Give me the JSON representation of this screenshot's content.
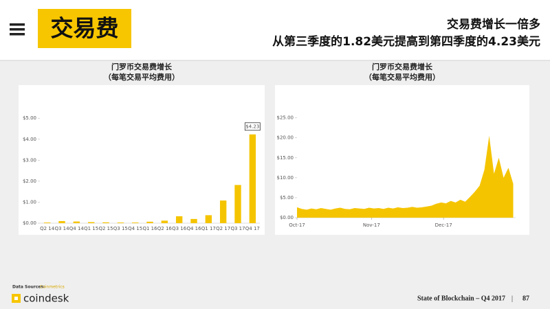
{
  "header": {
    "tag": "交易费",
    "headline": "交易费增长一倍多",
    "subheadline": "从第三季度的1.82美元提高到第四季度的4.23美元"
  },
  "chart_data": [
    {
      "type": "bar",
      "title": "门罗币交易费增长",
      "subtitle": "（每笔交易平均费用）",
      "categories": [
        "Q2 14",
        "Q3 14",
        "Q4 14",
        "Q1 15",
        "Q2 15",
        "Q3 15",
        "Q4 15",
        "Q1 16",
        "Q2 16",
        "Q3 16",
        "Q4 16",
        "Q1 17",
        "Q2 17",
        "Q3 17",
        "Q4 17"
      ],
      "values": [
        0.03,
        0.1,
        0.08,
        0.05,
        0.04,
        0.03,
        0.03,
        0.07,
        0.12,
        0.33,
        0.2,
        0.38,
        1.08,
        1.82,
        4.23
      ],
      "value_labels": [
        null,
        null,
        null,
        null,
        null,
        null,
        null,
        null,
        null,
        null,
        null,
        null,
        null,
        null,
        "$4.23"
      ],
      "color": "#f5c400",
      "ylim": [
        0,
        5.4
      ],
      "yticks": [
        {
          "value": 0,
          "label": "$0.00"
        },
        {
          "value": 1,
          "label": "$1.00"
        },
        {
          "value": 2,
          "label": "$2.00"
        },
        {
          "value": 3,
          "label": "$3.00"
        },
        {
          "value": 4,
          "label": "$4.00"
        },
        {
          "value": 5,
          "label": "$5.00"
        }
      ]
    },
    {
      "type": "area",
      "title": "门罗币交易费增长",
      "subtitle": "（每笔交易平均费用）",
      "x": [
        0,
        2,
        4,
        6,
        8,
        10,
        12,
        14,
        16,
        18,
        20,
        22,
        24,
        26,
        28,
        30,
        32,
        34,
        36,
        38,
        40,
        42,
        44,
        46,
        48,
        50,
        52,
        54,
        56,
        58,
        60,
        62,
        64,
        66,
        68,
        70,
        72,
        74,
        76,
        78,
        80,
        82,
        84,
        86,
        88,
        90
      ],
      "values": [
        2.6,
        2.2,
        2.0,
        2.3,
        2.1,
        2.4,
        2.2,
        2.0,
        2.3,
        2.5,
        2.2,
        2.1,
        2.4,
        2.3,
        2.2,
        2.5,
        2.3,
        2.4,
        2.2,
        2.5,
        2.3,
        2.6,
        2.4,
        2.5,
        2.7,
        2.5,
        2.6,
        2.8,
        3.0,
        3.5,
        3.8,
        3.6,
        4.2,
        3.8,
        4.5,
        4.0,
        5.2,
        6.5,
        8.0,
        12.0,
        20.5,
        11.0,
        15.0,
        10.0,
        12.5,
        8.5
      ],
      "color": "#f5c400",
      "xlim": [
        0,
        91
      ],
      "xticks": [
        {
          "value": 0,
          "label": "Oct-17"
        },
        {
          "value": 31,
          "label": "Nov-17"
        },
        {
          "value": 61,
          "label": "Dec-17"
        }
      ],
      "ylim": [
        0,
        27
      ],
      "yticks": [
        {
          "value": 0,
          "label": "$0.00"
        },
        {
          "value": 5,
          "label": "$5.00"
        },
        {
          "value": 10,
          "label": "$10.00"
        },
        {
          "value": 15,
          "label": "$15.00"
        },
        {
          "value": 20,
          "label": "$20.00"
        },
        {
          "value": 25,
          "label": "$25.00"
        }
      ]
    }
  ],
  "footer": {
    "source_label": "Data Sources:",
    "source": "Coinmetrics",
    "brand": "coindesk",
    "report": "State of Blockchain – Q4 2017",
    "separator": "|",
    "page": "87"
  }
}
